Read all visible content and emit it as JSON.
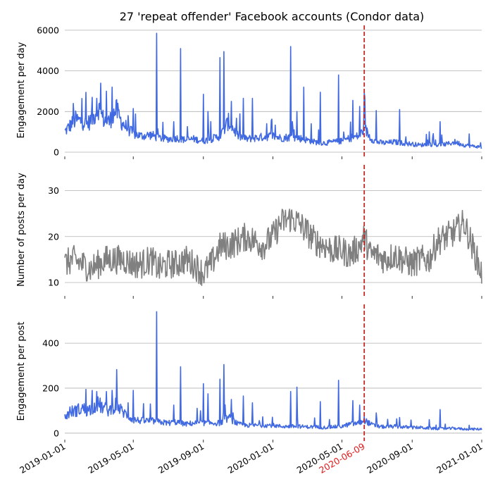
{
  "chart_data": {
    "type": "line",
    "title": "27 'repeat offender' Facebook accounts (Condor data)",
    "x_range": [
      "2019-01-01",
      "2021-01-01"
    ],
    "x_ticks": [
      "2019-01-01",
      "2019-05-01",
      "2019-09-01",
      "2020-01-01",
      "2020-05-01",
      "2020-09-01",
      "2021-01-01"
    ],
    "event": {
      "date": "2020-06-09",
      "label": "2020-06-09",
      "color": "#e41a1c",
      "line_color": "#c62828"
    },
    "grid": "horizontal",
    "panels": [
      {
        "ylabel": "Engagement per day",
        "ylim": [
          0,
          6100
        ],
        "yticks": [
          0,
          2000,
          4000,
          6000
        ],
        "color": "#4169e1",
        "points": [
          [
            "2019-01-01",
            1000
          ],
          [
            "2019-01-10",
            1300
          ],
          [
            "2019-01-20",
            1600
          ],
          [
            "2019-02-01",
            1500
          ],
          [
            "2019-02-10",
            1400
          ],
          [
            "2019-02-20",
            1700
          ],
          [
            "2019-03-01",
            2200
          ],
          [
            "2019-03-10",
            1600
          ],
          [
            "2019-03-20",
            1500
          ],
          [
            "2019-04-01",
            2100
          ],
          [
            "2019-04-10",
            1500
          ],
          [
            "2019-04-20",
            1200
          ],
          [
            "2019-05-01",
            900
          ],
          [
            "2019-05-15",
            800
          ],
          [
            "2019-06-01",
            850
          ],
          [
            "2019-06-15",
            700
          ],
          [
            "2019-07-01",
            650
          ],
          [
            "2019-07-15",
            700
          ],
          [
            "2019-08-01",
            600
          ],
          [
            "2019-08-15",
            650
          ],
          [
            "2019-09-01",
            550
          ],
          [
            "2019-09-15",
            650
          ],
          [
            "2019-10-01",
            800
          ],
          [
            "2019-10-15",
            1500
          ],
          [
            "2019-11-01",
            800
          ],
          [
            "2019-11-15",
            650
          ],
          [
            "2019-12-01",
            700
          ],
          [
            "2019-12-15",
            750
          ],
          [
            "2020-01-01",
            800
          ],
          [
            "2020-01-15",
            700
          ],
          [
            "2020-02-01",
            750
          ],
          [
            "2020-02-15",
            700
          ],
          [
            "2020-03-01",
            600
          ],
          [
            "2020-03-15",
            500
          ],
          [
            "2020-04-01",
            450
          ],
          [
            "2020-04-15",
            500
          ],
          [
            "2020-05-01",
            550
          ],
          [
            "2020-05-15",
            700
          ],
          [
            "2020-06-01",
            800
          ],
          [
            "2020-06-09",
            1200
          ],
          [
            "2020-06-20",
            700
          ],
          [
            "2020-07-01",
            500
          ],
          [
            "2020-07-15",
            450
          ],
          [
            "2020-08-01",
            500
          ],
          [
            "2020-08-15",
            450
          ],
          [
            "2020-09-01",
            400
          ],
          [
            "2020-09-15",
            350
          ],
          [
            "2020-10-01",
            400
          ],
          [
            "2020-10-15",
            350
          ],
          [
            "2020-11-01",
            400
          ],
          [
            "2020-11-15",
            500
          ],
          [
            "2020-12-01",
            350
          ],
          [
            "2020-12-15",
            300
          ],
          [
            "2021-01-01",
            250
          ]
        ],
        "spikes": [
          [
            "2019-01-16",
            2400
          ],
          [
            "2019-02-18",
            2700
          ],
          [
            "2019-02-26",
            2650
          ],
          [
            "2019-03-15",
            3000
          ],
          [
            "2019-03-25",
            3200
          ],
          [
            "2019-04-22",
            1800
          ],
          [
            "2019-05-01",
            2150
          ],
          [
            "2019-06-11",
            5850
          ],
          [
            "2019-07-11",
            1500
          ],
          [
            "2019-07-23",
            5100
          ],
          [
            "2019-09-01",
            2850
          ],
          [
            "2019-09-09",
            2000
          ],
          [
            "2019-09-30",
            4650
          ],
          [
            "2019-10-07",
            4950
          ],
          [
            "2019-10-20",
            2500
          ],
          [
            "2019-11-10",
            2650
          ],
          [
            "2019-11-26",
            2650
          ],
          [
            "2019-12-21",
            1400
          ],
          [
            "2020-02-01",
            5200
          ],
          [
            "2020-02-12",
            2000
          ],
          [
            "2020-02-24",
            3200
          ],
          [
            "2020-03-08",
            1400
          ],
          [
            "2020-03-24",
            2950
          ],
          [
            "2020-04-25",
            3800
          ],
          [
            "2020-05-20",
            2550
          ],
          [
            "2020-06-01",
            2250
          ],
          [
            "2020-06-30",
            2050
          ],
          [
            "2020-08-10",
            2100
          ],
          [
            "2020-10-01",
            1000
          ],
          [
            "2020-10-20",
            1500
          ],
          [
            "2020-12-10",
            900
          ]
        ]
      },
      {
        "ylabel": "Number of posts per day",
        "ylim": [
          8,
          35
        ],
        "yticks": [
          10,
          20,
          30
        ],
        "color": "#808080",
        "points": [
          [
            "2019-01-01",
            14
          ],
          [
            "2019-01-15",
            15
          ],
          [
            "2019-02-01",
            14
          ],
          [
            "2019-02-15",
            13
          ],
          [
            "2019-03-01",
            14
          ],
          [
            "2019-03-15",
            15
          ],
          [
            "2019-04-01",
            15
          ],
          [
            "2019-04-15",
            15
          ],
          [
            "2019-05-01",
            14
          ],
          [
            "2019-05-15",
            14
          ],
          [
            "2019-06-01",
            15
          ],
          [
            "2019-06-15",
            13
          ],
          [
            "2019-07-01",
            14
          ],
          [
            "2019-07-15",
            14
          ],
          [
            "2019-08-01",
            15
          ],
          [
            "2019-08-15",
            14
          ],
          [
            "2019-09-01",
            12
          ],
          [
            "2019-09-15",
            14
          ],
          [
            "2019-10-01",
            18
          ],
          [
            "2019-10-15",
            18
          ],
          [
            "2019-11-01",
            19
          ],
          [
            "2019-11-15",
            20
          ],
          [
            "2019-12-01",
            19
          ],
          [
            "2019-12-15",
            18
          ],
          [
            "2020-01-01",
            20
          ],
          [
            "2020-01-15",
            23
          ],
          [
            "2020-02-01",
            24
          ],
          [
            "2020-02-15",
            23
          ],
          [
            "2020-03-01",
            21
          ],
          [
            "2020-03-15",
            19
          ],
          [
            "2020-04-01",
            18
          ],
          [
            "2020-04-15",
            17
          ],
          [
            "2020-05-01",
            17
          ],
          [
            "2020-05-15",
            16
          ],
          [
            "2020-06-01",
            18
          ],
          [
            "2020-06-09",
            20
          ],
          [
            "2020-06-20",
            16
          ],
          [
            "2020-07-01",
            16
          ],
          [
            "2020-07-15",
            15
          ],
          [
            "2020-08-01",
            16
          ],
          [
            "2020-08-15",
            15
          ],
          [
            "2020-09-01",
            14
          ],
          [
            "2020-09-15",
            15
          ],
          [
            "2020-10-01",
            15
          ],
          [
            "2020-10-15",
            19
          ],
          [
            "2020-11-01",
            20
          ],
          [
            "2020-11-15",
            21
          ],
          [
            "2020-12-01",
            23
          ],
          [
            "2020-12-15",
            18
          ],
          [
            "2021-01-01",
            12
          ]
        ],
        "spikes": []
      },
      {
        "ylabel": "Engagement per post",
        "ylim": [
          -10,
          560
        ],
        "yticks": [
          0,
          200,
          400
        ],
        "color": "#4169e1",
        "points": [
          [
            "2019-01-01",
            70
          ],
          [
            "2019-01-10",
            95
          ],
          [
            "2019-01-20",
            100
          ],
          [
            "2019-02-01",
            110
          ],
          [
            "2019-02-10",
            100
          ],
          [
            "2019-02-20",
            120
          ],
          [
            "2019-03-01",
            130
          ],
          [
            "2019-03-10",
            110
          ],
          [
            "2019-03-20",
            100
          ],
          [
            "2019-04-01",
            130
          ],
          [
            "2019-04-10",
            100
          ],
          [
            "2019-04-20",
            80
          ],
          [
            "2019-05-01",
            60
          ],
          [
            "2019-05-15",
            55
          ],
          [
            "2019-06-01",
            55
          ],
          [
            "2019-06-15",
            50
          ],
          [
            "2019-07-01",
            45
          ],
          [
            "2019-07-15",
            50
          ],
          [
            "2019-08-01",
            40
          ],
          [
            "2019-08-15",
            45
          ],
          [
            "2019-09-01",
            45
          ],
          [
            "2019-09-15",
            45
          ],
          [
            "2019-10-01",
            45
          ],
          [
            "2019-10-15",
            70
          ],
          [
            "2019-11-01",
            40
          ],
          [
            "2019-11-15",
            35
          ],
          [
            "2019-12-01",
            35
          ],
          [
            "2019-12-15",
            35
          ],
          [
            "2020-01-01",
            35
          ],
          [
            "2020-01-15",
            30
          ],
          [
            "2020-02-01",
            30
          ],
          [
            "2020-02-15",
            30
          ],
          [
            "2020-03-01",
            28
          ],
          [
            "2020-03-15",
            28
          ],
          [
            "2020-04-01",
            25
          ],
          [
            "2020-04-15",
            28
          ],
          [
            "2020-05-01",
            30
          ],
          [
            "2020-05-15",
            40
          ],
          [
            "2020-06-01",
            45
          ],
          [
            "2020-06-09",
            60
          ],
          [
            "2020-06-20",
            40
          ],
          [
            "2020-07-01",
            30
          ],
          [
            "2020-07-15",
            28
          ],
          [
            "2020-08-01",
            30
          ],
          [
            "2020-08-15",
            28
          ],
          [
            "2020-09-01",
            25
          ],
          [
            "2020-09-15",
            25
          ],
          [
            "2020-10-01",
            22
          ],
          [
            "2020-10-15",
            20
          ],
          [
            "2020-11-01",
            20
          ],
          [
            "2020-11-15",
            22
          ],
          [
            "2020-12-01",
            18
          ],
          [
            "2020-12-15",
            18
          ],
          [
            "2021-01-01",
            18
          ]
        ],
        "spikes": [
          [
            "2019-02-18",
            190
          ],
          [
            "2019-02-26",
            185
          ],
          [
            "2019-03-15",
            185
          ],
          [
            "2019-03-25",
            190
          ],
          [
            "2019-04-22",
            135
          ],
          [
            "2019-05-01",
            190
          ],
          [
            "2019-06-11",
            540
          ],
          [
            "2019-07-11",
            125
          ],
          [
            "2019-07-23",
            295
          ],
          [
            "2019-09-01",
            220
          ],
          [
            "2019-09-09",
            175
          ],
          [
            "2019-09-30",
            240
          ],
          [
            "2019-10-07",
            305
          ],
          [
            "2019-10-20",
            150
          ],
          [
            "2019-11-10",
            165
          ],
          [
            "2019-11-26",
            135
          ],
          [
            "2020-02-01",
            185
          ],
          [
            "2020-02-12",
            205
          ],
          [
            "2020-03-24",
            140
          ],
          [
            "2020-04-25",
            235
          ],
          [
            "2020-05-20",
            145
          ],
          [
            "2020-06-01",
            125
          ],
          [
            "2020-06-30",
            90
          ],
          [
            "2020-08-10",
            70
          ],
          [
            "2020-10-01",
            60
          ],
          [
            "2020-10-20",
            105
          ],
          [
            "2020-12-10",
            35
          ]
        ]
      }
    ]
  }
}
